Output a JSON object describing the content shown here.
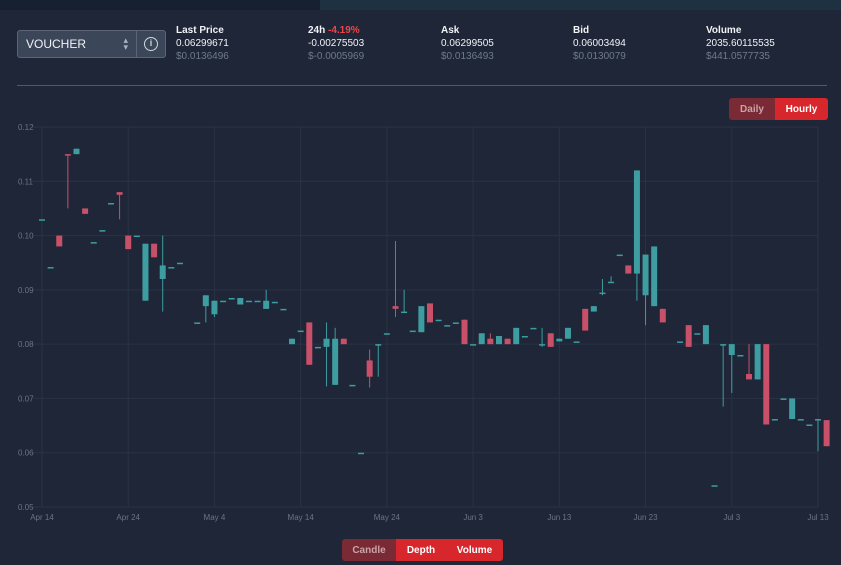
{
  "header": {
    "pair": "VOUCHER",
    "stats": [
      {
        "label": "Last Price",
        "change": "",
        "value": "0.06299671",
        "usd": "$0.0136496"
      },
      {
        "label": "24h",
        "change": "-4.19%",
        "value": "-0.00275503",
        "usd": "$-0.0005969"
      },
      {
        "label": "Ask",
        "change": "",
        "value": "0.06299505",
        "usd": "$0.0136493"
      },
      {
        "label": "Bid",
        "change": "",
        "value": "0.06003494",
        "usd": "$0.0130079"
      },
      {
        "label": "Volume",
        "change": "",
        "value": "2035.60115535",
        "usd": "$441.0577735"
      }
    ]
  },
  "interval_toggle": {
    "daily": "Daily",
    "hourly": "Hourly",
    "active": "Hourly"
  },
  "view_toggle": {
    "candle": "Candle",
    "depth": "Depth",
    "volume": "Volume",
    "active": "Candle"
  },
  "colors": {
    "up": "#3e9da1",
    "down": "#c85069",
    "grid": "#2a3345",
    "axis_text": "#6b7587",
    "negative": "#f0444a",
    "accent": "#d8262d"
  },
  "chart_data": {
    "type": "candlestick",
    "ylim": [
      0.05,
      0.12
    ],
    "yticks": [
      "0.12",
      "0.11",
      "0.10",
      "0.09",
      "0.08",
      "0.07",
      "0.06",
      "0.05"
    ],
    "xticks": [
      "Apr 14",
      "Apr 24",
      "May 4",
      "May 14",
      "May 24",
      "Jun 3",
      "Jun 13",
      "Jun 23",
      "Jul 3",
      "Jul 13"
    ],
    "x_start": "2023-04-14",
    "x_end": "2023-07-13",
    "series": [
      {
        "date": "2023-04-14",
        "open": 0.103,
        "close": 0.103,
        "high": 0.103,
        "low": 0.103
      },
      {
        "date": "2023-04-15",
        "open": 0.0942,
        "close": 0.0942,
        "high": 0.0942,
        "low": 0.0942
      },
      {
        "date": "2023-04-16",
        "open": 0.1,
        "close": 0.098,
        "high": 0.1,
        "low": 0.098
      },
      {
        "date": "2023-04-17",
        "open": 0.115,
        "close": 0.1148,
        "high": 0.115,
        "low": 0.105
      },
      {
        "date": "2023-04-18",
        "open": 0.115,
        "close": 0.116,
        "high": 0.116,
        "low": 0.115
      },
      {
        "date": "2023-04-19",
        "open": 0.105,
        "close": 0.104,
        "high": 0.105,
        "low": 0.104
      },
      {
        "date": "2023-04-20",
        "open": 0.0988,
        "close": 0.0988,
        "high": 0.0988,
        "low": 0.0988
      },
      {
        "date": "2023-04-21",
        "open": 0.101,
        "close": 0.101,
        "high": 0.101,
        "low": 0.101
      },
      {
        "date": "2023-04-22",
        "open": 0.106,
        "close": 0.106,
        "high": 0.106,
        "low": 0.106
      },
      {
        "date": "2023-04-23",
        "open": 0.108,
        "close": 0.1075,
        "high": 0.108,
        "low": 0.103
      },
      {
        "date": "2023-04-24",
        "open": 0.1,
        "close": 0.0975,
        "high": 0.1,
        "low": 0.0975
      },
      {
        "date": "2023-04-25",
        "open": 0.1,
        "close": 0.1,
        "high": 0.1,
        "low": 0.1
      },
      {
        "date": "2023-04-26",
        "open": 0.088,
        "close": 0.0985,
        "high": 0.0985,
        "low": 0.088
      },
      {
        "date": "2023-04-27",
        "open": 0.0985,
        "close": 0.096,
        "high": 0.0985,
        "low": 0.096
      },
      {
        "date": "2023-04-28",
        "open": 0.092,
        "close": 0.0945,
        "high": 0.1,
        "low": 0.086
      },
      {
        "date": "2023-04-29",
        "open": 0.0942,
        "close": 0.0942,
        "high": 0.0942,
        "low": 0.0942
      },
      {
        "date": "2023-04-30",
        "open": 0.095,
        "close": 0.095,
        "high": 0.095,
        "low": 0.095
      },
      {
        "date": "2023-05-02",
        "open": 0.084,
        "close": 0.084,
        "high": 0.084,
        "low": 0.084
      },
      {
        "date": "2023-05-03",
        "open": 0.087,
        "close": 0.089,
        "high": 0.089,
        "low": 0.084
      },
      {
        "date": "2023-05-04",
        "open": 0.0855,
        "close": 0.088,
        "high": 0.088,
        "low": 0.085
      },
      {
        "date": "2023-05-05",
        "open": 0.088,
        "close": 0.088,
        "high": 0.088,
        "low": 0.088
      },
      {
        "date": "2023-05-06",
        "open": 0.0885,
        "close": 0.0885,
        "high": 0.0885,
        "low": 0.0885
      },
      {
        "date": "2023-05-07",
        "open": 0.0873,
        "close": 0.0885,
        "high": 0.0885,
        "low": 0.0873
      },
      {
        "date": "2023-05-08",
        "open": 0.088,
        "close": 0.088,
        "high": 0.088,
        "low": 0.088
      },
      {
        "date": "2023-05-09",
        "open": 0.088,
        "close": 0.088,
        "high": 0.088,
        "low": 0.088
      },
      {
        "date": "2023-05-10",
        "open": 0.0865,
        "close": 0.088,
        "high": 0.09,
        "low": 0.0865
      },
      {
        "date": "2023-05-11",
        "open": 0.0878,
        "close": 0.0878,
        "high": 0.0878,
        "low": 0.0878
      },
      {
        "date": "2023-05-12",
        "open": 0.0865,
        "close": 0.0865,
        "high": 0.0865,
        "low": 0.0865
      },
      {
        "date": "2023-05-13",
        "open": 0.08,
        "close": 0.081,
        "high": 0.081,
        "low": 0.08
      },
      {
        "date": "2023-05-14",
        "open": 0.0825,
        "close": 0.0825,
        "high": 0.0825,
        "low": 0.0825
      },
      {
        "date": "2023-05-15",
        "open": 0.084,
        "close": 0.0762,
        "high": 0.084,
        "low": 0.0762
      },
      {
        "date": "2023-05-16",
        "open": 0.0795,
        "close": 0.0795,
        "high": 0.0795,
        "low": 0.0795
      },
      {
        "date": "2023-05-17",
        "open": 0.0795,
        "close": 0.081,
        "high": 0.084,
        "low": 0.0722
      },
      {
        "date": "2023-05-18",
        "open": 0.0725,
        "close": 0.081,
        "high": 0.083,
        "low": 0.0725
      },
      {
        "date": "2023-05-19",
        "open": 0.081,
        "close": 0.08,
        "high": 0.081,
        "low": 0.08
      },
      {
        "date": "2023-05-20",
        "open": 0.0725,
        "close": 0.0725,
        "high": 0.0725,
        "low": 0.0725
      },
      {
        "date": "2023-05-21",
        "open": 0.06,
        "close": 0.06,
        "high": 0.06,
        "low": 0.06
      },
      {
        "date": "2023-05-22",
        "open": 0.077,
        "close": 0.074,
        "high": 0.079,
        "low": 0.072
      },
      {
        "date": "2023-05-23",
        "open": 0.08,
        "close": 0.08,
        "high": 0.08,
        "low": 0.074
      },
      {
        "date": "2023-05-24",
        "open": 0.082,
        "close": 0.082,
        "high": 0.082,
        "low": 0.082
      },
      {
        "date": "2023-05-25",
        "open": 0.087,
        "close": 0.0865,
        "high": 0.099,
        "low": 0.085
      },
      {
        "date": "2023-05-26",
        "open": 0.086,
        "close": 0.086,
        "high": 0.09,
        "low": 0.086
      },
      {
        "date": "2023-05-27",
        "open": 0.0825,
        "close": 0.0825,
        "high": 0.0825,
        "low": 0.0825
      },
      {
        "date": "2023-05-28",
        "open": 0.0822,
        "close": 0.087,
        "high": 0.087,
        "low": 0.0822
      },
      {
        "date": "2023-05-29",
        "open": 0.0875,
        "close": 0.084,
        "high": 0.0875,
        "low": 0.084
      },
      {
        "date": "2023-05-30",
        "open": 0.0845,
        "close": 0.0845,
        "high": 0.0845,
        "low": 0.0845
      },
      {
        "date": "2023-05-31",
        "open": 0.0835,
        "close": 0.0835,
        "high": 0.0835,
        "low": 0.0835
      },
      {
        "date": "2023-06-01",
        "open": 0.084,
        "close": 0.084,
        "high": 0.084,
        "low": 0.084
      },
      {
        "date": "2023-06-02",
        "open": 0.0845,
        "close": 0.08,
        "high": 0.0845,
        "low": 0.08
      },
      {
        "date": "2023-06-03",
        "open": 0.08,
        "close": 0.08,
        "high": 0.08,
        "low": 0.08
      },
      {
        "date": "2023-06-04",
        "open": 0.08,
        "close": 0.082,
        "high": 0.082,
        "low": 0.08
      },
      {
        "date": "2023-06-05",
        "open": 0.081,
        "close": 0.08,
        "high": 0.082,
        "low": 0.08
      },
      {
        "date": "2023-06-06",
        "open": 0.08,
        "close": 0.0815,
        "high": 0.0815,
        "low": 0.08
      },
      {
        "date": "2023-06-07",
        "open": 0.081,
        "close": 0.08,
        "high": 0.081,
        "low": 0.08
      },
      {
        "date": "2023-06-08",
        "open": 0.08,
        "close": 0.083,
        "high": 0.083,
        "low": 0.08
      },
      {
        "date": "2023-06-09",
        "open": 0.0815,
        "close": 0.0815,
        "high": 0.0815,
        "low": 0.0815
      },
      {
        "date": "2023-06-10",
        "open": 0.083,
        "close": 0.083,
        "high": 0.083,
        "low": 0.083
      },
      {
        "date": "2023-06-11",
        "open": 0.08,
        "close": 0.08,
        "high": 0.083,
        "low": 0.0795
      },
      {
        "date": "2023-06-12",
        "open": 0.082,
        "close": 0.0795,
        "high": 0.082,
        "low": 0.0795
      },
      {
        "date": "2023-06-13",
        "open": 0.0805,
        "close": 0.081,
        "high": 0.081,
        "low": 0.0805
      },
      {
        "date": "2023-06-14",
        "open": 0.081,
        "close": 0.083,
        "high": 0.083,
        "low": 0.081
      },
      {
        "date": "2023-06-15",
        "open": 0.0805,
        "close": 0.0805,
        "high": 0.0805,
        "low": 0.0805
      },
      {
        "date": "2023-06-16",
        "open": 0.0865,
        "close": 0.0825,
        "high": 0.0865,
        "low": 0.0825
      },
      {
        "date": "2023-06-17",
        "open": 0.086,
        "close": 0.087,
        "high": 0.087,
        "low": 0.086
      },
      {
        "date": "2023-06-18",
        "open": 0.0895,
        "close": 0.0895,
        "high": 0.092,
        "low": 0.089
      },
      {
        "date": "2023-06-19",
        "open": 0.0915,
        "close": 0.0915,
        "high": 0.0925,
        "low": 0.0915
      },
      {
        "date": "2023-06-20",
        "open": 0.0965,
        "close": 0.0965,
        "high": 0.0965,
        "low": 0.0965
      },
      {
        "date": "2023-06-21",
        "open": 0.0945,
        "close": 0.093,
        "high": 0.0945,
        "low": 0.093
      },
      {
        "date": "2023-06-22",
        "open": 0.093,
        "close": 0.112,
        "high": 0.112,
        "low": 0.088
      },
      {
        "date": "2023-06-23",
        "open": 0.089,
        "close": 0.0965,
        "high": 0.0965,
        "low": 0.0835
      },
      {
        "date": "2023-06-24",
        "open": 0.087,
        "close": 0.098,
        "high": 0.098,
        "low": 0.087
      },
      {
        "date": "2023-06-25",
        "open": 0.0865,
        "close": 0.084,
        "high": 0.0865,
        "low": 0.084
      },
      {
        "date": "2023-06-27",
        "open": 0.0805,
        "close": 0.0805,
        "high": 0.0805,
        "low": 0.0805
      },
      {
        "date": "2023-06-28",
        "open": 0.0835,
        "close": 0.0795,
        "high": 0.0835,
        "low": 0.0795
      },
      {
        "date": "2023-06-29",
        "open": 0.082,
        "close": 0.082,
        "high": 0.082,
        "low": 0.082
      },
      {
        "date": "2023-06-30",
        "open": 0.08,
        "close": 0.0835,
        "high": 0.0835,
        "low": 0.08
      },
      {
        "date": "2023-07-01",
        "open": 0.054,
        "close": 0.054,
        "high": 0.054,
        "low": 0.054
      },
      {
        "date": "2023-07-02",
        "open": 0.08,
        "close": 0.08,
        "high": 0.08,
        "low": 0.0685
      },
      {
        "date": "2023-07-03",
        "open": 0.078,
        "close": 0.08,
        "high": 0.08,
        "low": 0.071
      },
      {
        "date": "2023-07-04",
        "open": 0.078,
        "close": 0.078,
        "high": 0.078,
        "low": 0.078
      },
      {
        "date": "2023-07-05",
        "open": 0.0745,
        "close": 0.0735,
        "high": 0.08,
        "low": 0.0735
      },
      {
        "date": "2023-07-06",
        "open": 0.0735,
        "close": 0.08,
        "high": 0.08,
        "low": 0.0735
      },
      {
        "date": "2023-07-07",
        "open": 0.08,
        "close": 0.0652,
        "high": 0.08,
        "low": 0.0652
      },
      {
        "date": "2023-07-08",
        "open": 0.0662,
        "close": 0.0662,
        "high": 0.0662,
        "low": 0.0662
      },
      {
        "date": "2023-07-09",
        "open": 0.07,
        "close": 0.07,
        "high": 0.07,
        "low": 0.07
      },
      {
        "date": "2023-07-10",
        "open": 0.0662,
        "close": 0.07,
        "high": 0.07,
        "low": 0.0662
      },
      {
        "date": "2023-07-11",
        "open": 0.0662,
        "close": 0.0662,
        "high": 0.0662,
        "low": 0.0662
      },
      {
        "date": "2023-07-12",
        "open": 0.0652,
        "close": 0.0652,
        "high": 0.0652,
        "low": 0.0652
      },
      {
        "date": "2023-07-13",
        "open": 0.0662,
        "close": 0.0662,
        "high": 0.0662,
        "low": 0.0603
      },
      {
        "date": "2023-07-14",
        "open": 0.066,
        "close": 0.0612,
        "high": 0.066,
        "low": 0.0612
      }
    ]
  }
}
